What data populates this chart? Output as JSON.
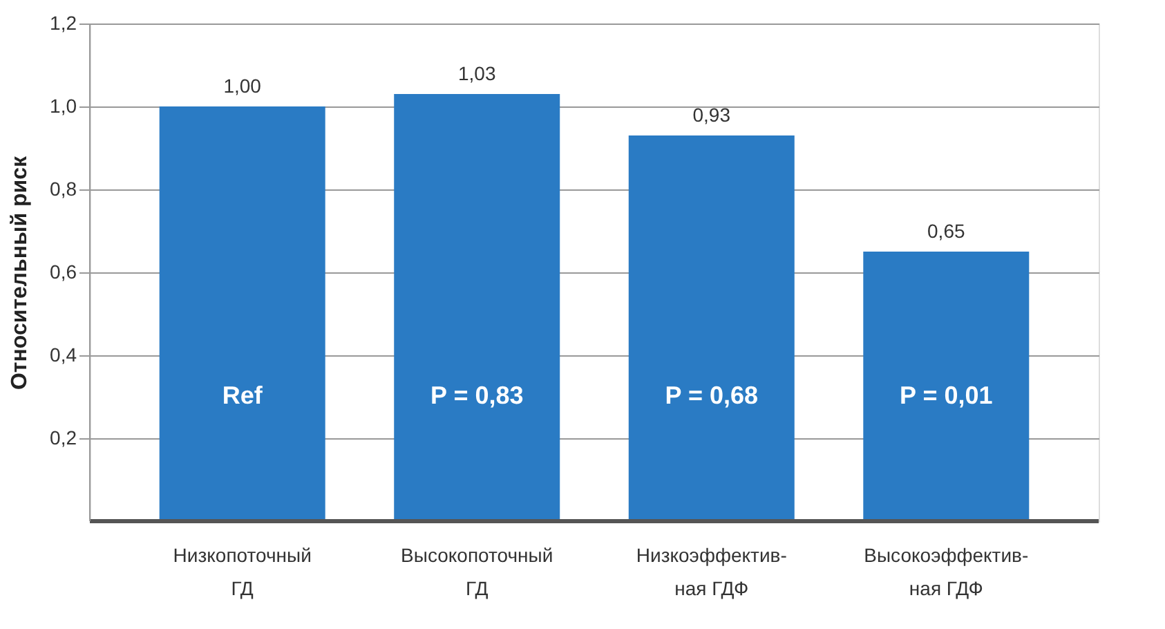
{
  "chart_data": {
    "type": "bar",
    "ylabel": "Относительный риск",
    "categories": [
      "Низкопоточный\nГД",
      "Высокопоточный\nГД",
      "Низкоэффектив-\nная ГДФ",
      "Высокоэффектив-\nная ГДФ"
    ],
    "values": [
      1.0,
      1.03,
      0.93,
      0.65
    ],
    "value_labels": [
      "1,00",
      "1,03",
      "0,93",
      "0,65"
    ],
    "color": "#2a7bc4",
    "ylim": [
      0,
      1.2
    ],
    "yticks": [
      {
        "value": 0.2,
        "label": "0,2"
      },
      {
        "value": 0.4,
        "label": "0,4"
      },
      {
        "value": 0.6,
        "label": "0,6"
      },
      {
        "value": 0.8,
        "label": "0,8"
      },
      {
        "value": 1.0,
        "label": "1,0"
      },
      {
        "value": 1.2,
        "label": "1,2"
      }
    ],
    "grid": "y",
    "annotations": [
      "Ref",
      "P = 0,83",
      "P = 0,68",
      "P = 0,01"
    ]
  }
}
